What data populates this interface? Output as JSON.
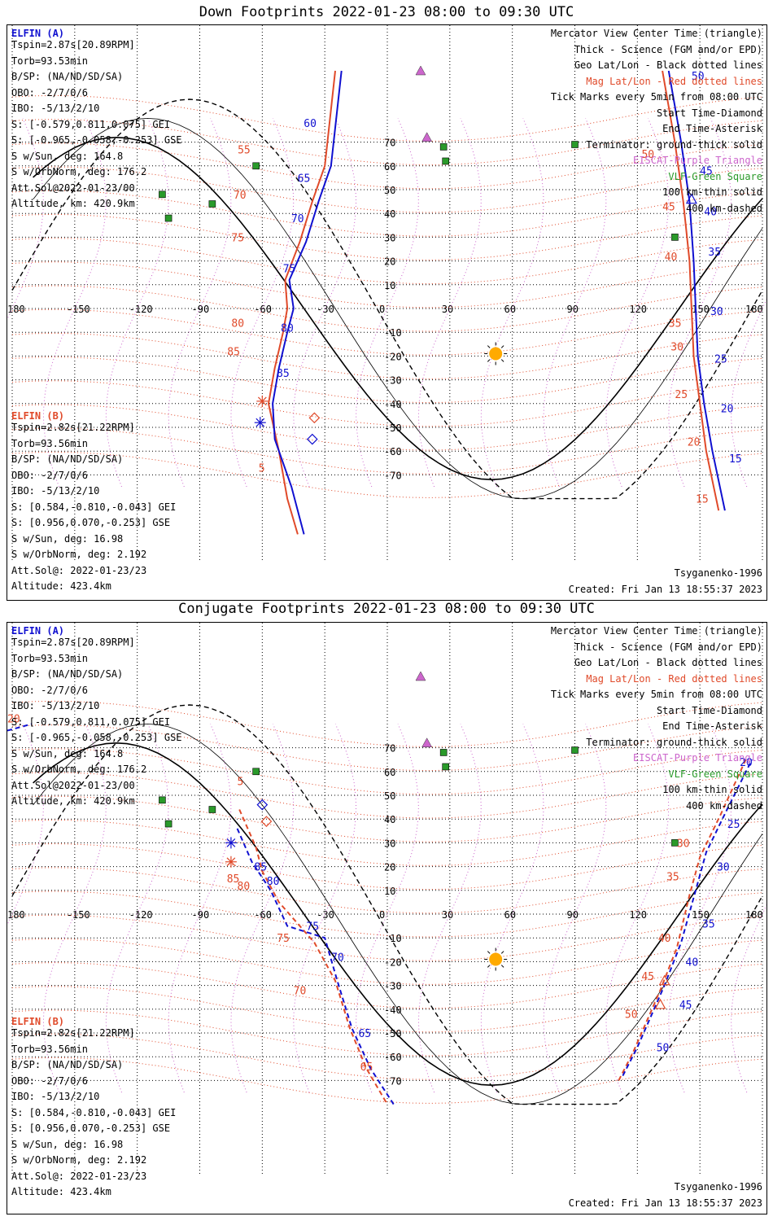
{
  "panels": [
    {
      "title": "Down Footprints 2022-01-23 08:00 to 09:30 UTC",
      "elfin_a": {
        "name": "ELFIN (A)",
        "lines": [
          "Tspin=2.87s[20.89RPM]",
          "Torb=93.53min",
          "B/SP: (NA/ND/SD/SA)",
          "OBO: -2/7/0/6",
          "IBO: -5/13/2/10",
          "S: [-0.579,0.811,0.075] GEI",
          "S: [-0.965,-0.058,-0.253] GSE",
          "S w/Sun, deg: 164.8",
          "S w/OrbNorm, deg: 176.2",
          "Att.Sol@2022-01-23/00",
          "Altitude, km: 420.9km"
        ]
      },
      "elfin_b": {
        "name": "ELFIN (B)",
        "lines": [
          "Tspin=2.82s[21.22RPM]",
          "Torb=93.56min",
          "B/SP: (NA/ND/SD/SA)",
          "OBO: -2/7/0/6",
          "IBO: -5/13/2/10",
          "S: [0.584,-0.810,-0.043] GEI",
          "S: [0.956,0.070,-0.253] GSE",
          "S w/Sun, deg: 16.98",
          "S w/OrbNorm, deg: 2.192",
          "Att.Sol@: 2022-01-23/23",
          "Altitude: 423.4km"
        ]
      },
      "legend": [
        {
          "text": "Mercator View Center Time (triangle)",
          "color": "#000000"
        },
        {
          "text": "Thick - Science (FGM and/or EPD)",
          "color": "#000000"
        },
        {
          "text": "Geo Lat/Lon - Black dotted lines",
          "color": "#000000"
        },
        {
          "text": "Mag Lat/Lon - Red dotted lines",
          "color": "#e04a2a"
        },
        {
          "text": "Tick Marks every 5min from 08:00 UTC",
          "color": "#000000"
        },
        {
          "text": "Start Time-Diamond",
          "color": "#000000"
        },
        {
          "text": "End Time-Asterisk",
          "color": "#000000"
        },
        {
          "text": "Terminator: ground-thick solid",
          "color": "#000000"
        },
        {
          "text": "EISCAT-Purple Triangle",
          "color": "#cc66cc"
        },
        {
          "text": "VLF-Green Square",
          "color": "#2a9a2a"
        },
        {
          "text": "100 km-thin solid",
          "color": "#000000"
        },
        {
          "text": "400 km-dashed",
          "color": "#000000"
        }
      ],
      "model": "Tsyganenko-1996",
      "created": "Created: Fri Jan 13 18:55:37 2023",
      "a_ticks": [
        "60",
        "65",
        "70",
        "75",
        "80",
        "85",
        "50",
        "45",
        "40",
        "35",
        "30",
        "25",
        "20",
        "15"
      ],
      "b_ticks": [
        "55",
        "70",
        "75",
        "80",
        "85",
        "5",
        "50",
        "45",
        "40",
        "35",
        "30",
        "25",
        "20",
        "15"
      ]
    },
    {
      "title": "Conjugate Footprints 2022-01-23 08:00 to 09:30 UTC",
      "elfin_a": {
        "name": "ELFIN (A)",
        "lines": [
          "Tspin=2.87s[20.89RPM]",
          "Torb=93.53min",
          "B/SP: (NA/ND/SD/SA)",
          "OBO: -2/7/0/6",
          "IBO: -5/13/2/10",
          "S: [-0.579,0.811,0.075] GEI",
          "S: [-0.965,-0.058,-0.253] GSE",
          "S w/Sun, deg: 164.8",
          "S w/OrbNorm, deg: 176.2",
          "Att.Sol@2022-01-23/00",
          "Altitude, km: 420.9km"
        ]
      },
      "elfin_b": {
        "name": "ELFIN (B)",
        "lines": [
          "Tspin=2.82s[21.22RPM]",
          "Torb=93.56min",
          "B/SP: (NA/ND/SD/SA)",
          "OBO: -2/7/0/6",
          "IBO: -5/13/2/10",
          "S: [0.584,-0.810,-0.043] GEI",
          "S: [0.956,0.070,-0.253] GSE",
          "S w/Sun, deg: 16.98",
          "S w/OrbNorm, deg: 2.192",
          "Att.Sol@: 2022-01-23/23",
          "Altitude: 423.4km"
        ]
      },
      "legend": [
        {
          "text": "Mercator View Center Time (triangle)",
          "color": "#000000"
        },
        {
          "text": "Thick - Science (FGM and/or EPD)",
          "color": "#000000"
        },
        {
          "text": "Geo Lat/Lon - Black dotted lines",
          "color": "#000000"
        },
        {
          "text": "Mag Lat/Lon - Red dotted lines",
          "color": "#e04a2a"
        },
        {
          "text": "Tick Marks every 5min from 08:00 UTC",
          "color": "#000000"
        },
        {
          "text": "Start Time-Diamond",
          "color": "#000000"
        },
        {
          "text": "End Time-Asterisk",
          "color": "#000000"
        },
        {
          "text": "Terminator: ground-thick solid",
          "color": "#000000"
        },
        {
          "text": "EISCAT-Purple Triangle",
          "color": "#cc66cc"
        },
        {
          "text": "VLF-Green Square",
          "color": "#2a9a2a"
        },
        {
          "text": "100 km-thin solid",
          "color": "#000000"
        },
        {
          "text": "400 km-dashed",
          "color": "#000000"
        }
      ],
      "model": "Tsyganenko-1996",
      "created": "Created: Fri Jan 13 18:55:37 2023",
      "a_ticks": [
        "20",
        "85",
        "80",
        "75",
        "70",
        "65",
        "50",
        "45",
        "40",
        "35",
        "30",
        "25",
        "20"
      ],
      "b_ticks": [
        "5",
        "85",
        "80",
        "75",
        "70",
        "65",
        "50",
        "45",
        "40",
        "35",
        "30",
        "20"
      ]
    }
  ],
  "lon_labels": [
    "180",
    "-150",
    "-120",
    "-90",
    "-60",
    "-30",
    "0",
    "30",
    "60",
    "90",
    "120",
    "150",
    "180"
  ],
  "lat_labels": [
    "70",
    "60",
    "50",
    "40",
    "30",
    "20",
    "10",
    "0",
    "-10",
    "-20",
    "-30",
    "-40",
    "-50",
    "-60",
    "-70"
  ],
  "colors": {
    "elfin_a": "#1010d0",
    "elfin_b": "#e04a2a",
    "eiscat": "#cc66cc",
    "vlf": "#2a9a2a",
    "sun": "#ffaa00"
  }
}
